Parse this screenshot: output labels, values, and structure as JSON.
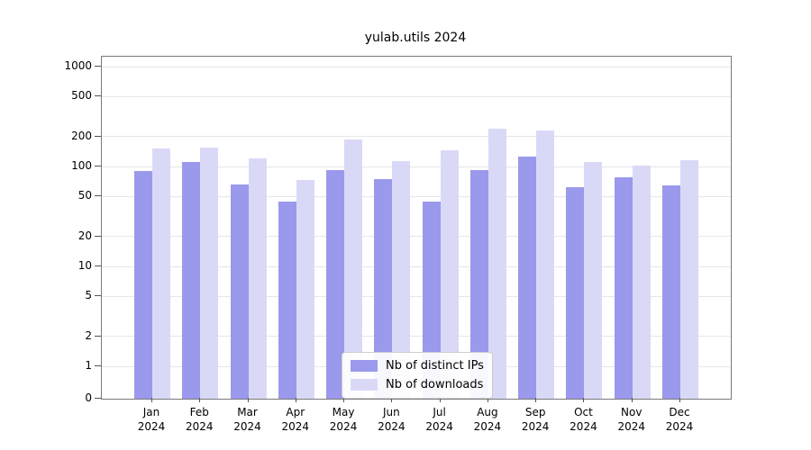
{
  "chart_data": {
    "type": "bar",
    "title": "yulab.utils 2024",
    "scale": "symlog",
    "grid": true,
    "legend_position": "lower-center",
    "x_year": "2024",
    "categories": [
      "Jan",
      "Feb",
      "Mar",
      "Apr",
      "May",
      "Jun",
      "Jul",
      "Aug",
      "Sep",
      "Oct",
      "Nov",
      "Dec"
    ],
    "y_ticks": [
      0,
      1,
      2,
      5,
      10,
      20,
      50,
      100,
      200,
      500,
      1000
    ],
    "ylim": [
      0,
      1250
    ],
    "series": [
      {
        "name": "Nb of distinct IPs",
        "color": "#9a99ec",
        "values": [
          90,
          110,
          66,
          45,
          92,
          75,
          45,
          93,
          125,
          62,
          78,
          65
        ]
      },
      {
        "name": "Nb of downloads",
        "color": "#d9d9f7",
        "values": [
          150,
          155,
          120,
          74,
          185,
          113,
          145,
          240,
          228,
          111,
          102,
          115
        ]
      }
    ]
  }
}
